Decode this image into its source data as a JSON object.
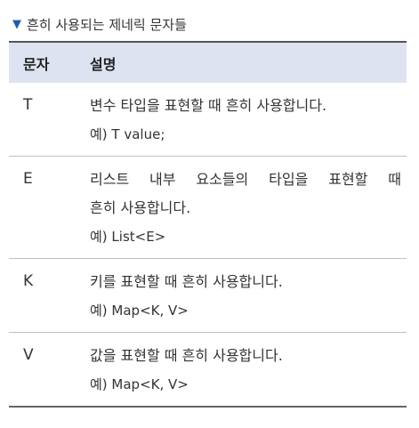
{
  "caption": {
    "icon": "triangle-down-icon",
    "text": "흔히 사용되는 제네릭 문자들"
  },
  "table": {
    "headers": [
      "문자",
      "설명"
    ],
    "rows": [
      {
        "char": "T",
        "lines": [
          "변수 타입을 표현할 때 흔히 사용합니다."
        ],
        "example": "예) T value;"
      },
      {
        "char": "E",
        "lines": [
          "리스트 내부 요소들의 타입을 표현할 때",
          "흔히 사용합니다."
        ],
        "example": "예) List<E>"
      },
      {
        "char": "K",
        "lines": [
          "키를 표현할 때 흔히 사용합니다."
        ],
        "example": "예) Map<K, V>"
      },
      {
        "char": "V",
        "lines": [
          "값을 표현할 때 흔히 사용합니다."
        ],
        "example": "예) Map<K, V>"
      }
    ]
  },
  "colors": {
    "accent": "#1f5fa8",
    "header_bg": "#dde3f0"
  }
}
